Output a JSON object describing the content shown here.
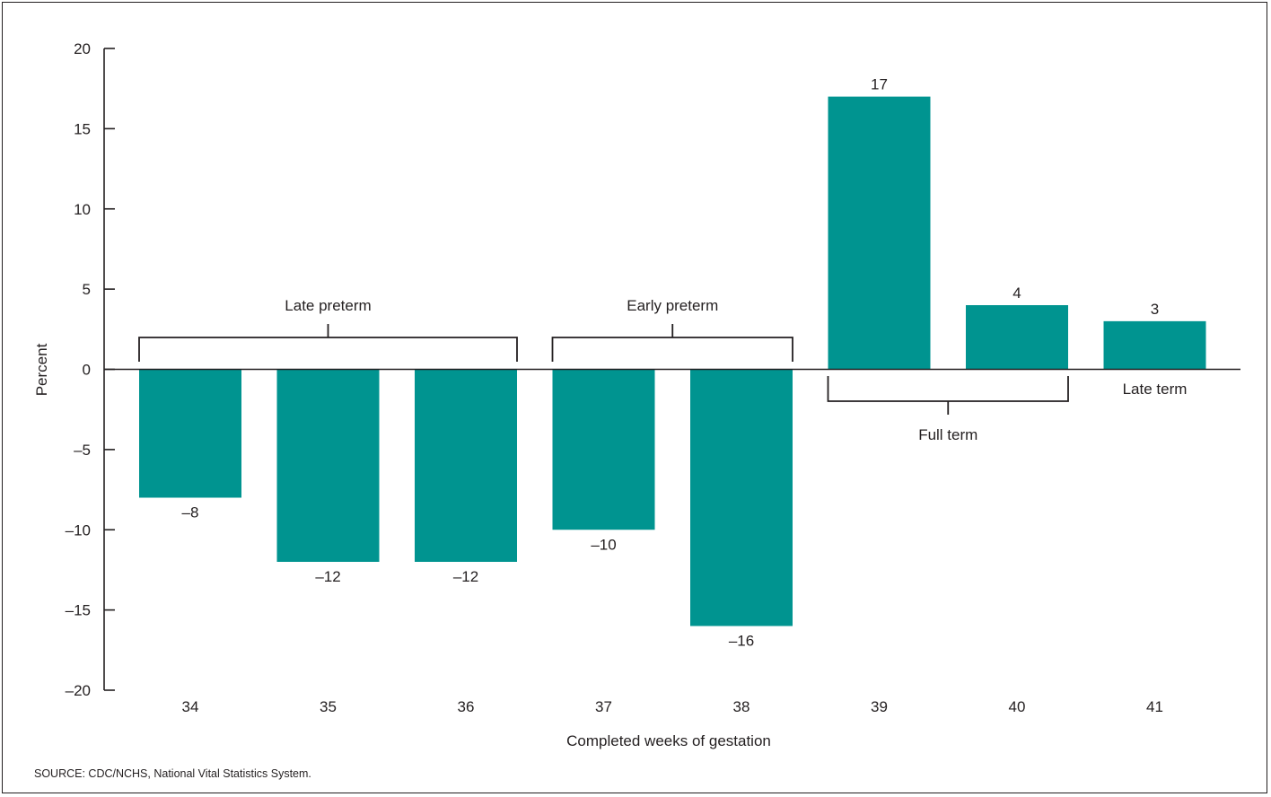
{
  "chart_data": {
    "type": "bar",
    "categories": [
      "34",
      "35",
      "36",
      "37",
      "38",
      "39",
      "40",
      "41"
    ],
    "values": [
      -8,
      -12,
      -12,
      -10,
      -16,
      17,
      4,
      3
    ],
    "data_labels": [
      "–8",
      "–12",
      "–12",
      "–10",
      "–16",
      "17",
      "4",
      "3"
    ],
    "xlabel": "Completed weeks of gestation",
    "ylabel": "Percent",
    "ylim": [
      -20,
      20
    ],
    "yticks": [
      20,
      15,
      10,
      5,
      0,
      -5,
      -10,
      -15,
      -20
    ],
    "ytick_labels": [
      "20",
      "15",
      "10",
      "5",
      "0",
      "–5",
      "–10",
      "–15",
      "–20"
    ],
    "grid": false,
    "bar_color": "#009490",
    "groups": [
      {
        "label": "Late preterm",
        "from": 0,
        "to": 2,
        "side": "above"
      },
      {
        "label": "Early preterm",
        "from": 3,
        "to": 4,
        "side": "above"
      },
      {
        "label": "Full term",
        "from": 5,
        "to": 6,
        "side": "below"
      },
      {
        "label": "Late term",
        "from": 7,
        "to": 7,
        "side": "below-text"
      }
    ]
  },
  "source": "SOURCE: CDC/NCHS, National Vital Statistics System."
}
